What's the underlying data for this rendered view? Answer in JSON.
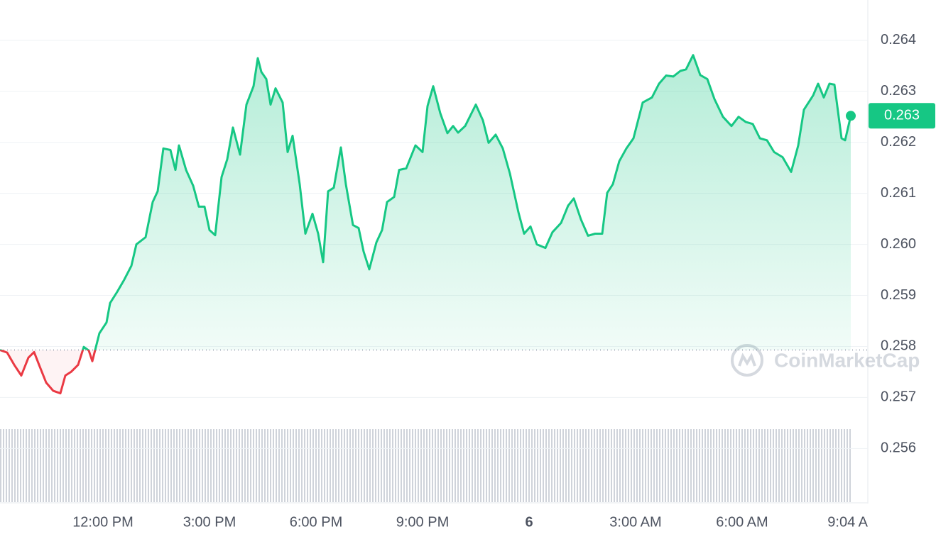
{
  "chart_data": {
    "type": "line",
    "x": [
      9.1,
      9.3,
      9.5,
      9.7,
      9.9,
      10.06,
      10.2,
      10.4,
      10.6,
      10.8,
      10.94,
      11.1,
      11.3,
      11.46,
      11.6,
      11.7,
      11.9,
      12.1,
      12.2,
      12.4,
      12.6,
      12.8,
      12.94,
      13.2,
      13.4,
      13.54,
      13.7,
      13.9,
      14.04,
      14.14,
      14.34,
      14.54,
      14.7,
      14.86,
      15,
      15.16,
      15.34,
      15.5,
      15.66,
      15.86,
      16.04,
      16.24,
      16.36,
      16.46,
      16.6,
      16.72,
      16.86,
      17.06,
      17.2,
      17.34,
      17.54,
      17.7,
      17.9,
      18.06,
      18.2,
      18.34,
      18.5,
      18.7,
      18.84,
      19.04,
      19.2,
      19.34,
      19.5,
      19.7,
      19.86,
      20,
      20.2,
      20.34,
      20.54,
      20.8,
      21,
      21.14,
      21.3,
      21.5,
      21.7,
      21.86,
      22,
      22.2,
      22.5,
      22.7,
      22.86,
      23.06,
      23.26,
      23.46,
      23.7,
      23.86,
      24.04,
      24.22,
      24.46,
      24.66,
      24.9,
      25.1,
      25.26,
      25.46,
      25.66,
      25.86,
      26.06,
      26.2,
      26.36,
      26.54,
      26.74,
      26.94,
      27.2,
      27.46,
      27.66,
      27.86,
      28.06,
      28.26,
      28.42,
      28.62,
      28.82,
      29.02,
      29.22,
      29.46,
      29.7,
      29.9,
      30.1,
      30.3,
      30.5,
      30.7,
      30.9,
      31.14,
      31.38,
      31.58,
      31.74,
      32,
      32.14,
      32.3,
      32.46,
      32.6,
      32.8,
      32.9,
      33.06
    ],
    "values": [
      0.25793,
      0.25788,
      0.25764,
      0.25743,
      0.25778,
      0.25789,
      0.25764,
      0.25729,
      0.25713,
      0.25708,
      0.25743,
      0.2575,
      0.25764,
      0.25799,
      0.25792,
      0.25771,
      0.25826,
      0.25847,
      0.25885,
      0.25907,
      0.25931,
      0.25958,
      0.26,
      0.26014,
      0.26083,
      0.26104,
      0.26188,
      0.26185,
      0.26146,
      0.26194,
      0.26146,
      0.26115,
      0.26074,
      0.26074,
      0.26028,
      0.26018,
      0.26132,
      0.26167,
      0.26229,
      0.26176,
      0.26274,
      0.2631,
      0.26365,
      0.26338,
      0.26324,
      0.26274,
      0.26306,
      0.26278,
      0.26181,
      0.26213,
      0.26118,
      0.26021,
      0.2606,
      0.26021,
      0.25965,
      0.26104,
      0.26111,
      0.2619,
      0.26118,
      0.26038,
      0.26032,
      0.25986,
      0.25951,
      0.26004,
      0.26028,
      0.26083,
      0.26093,
      0.26146,
      0.26149,
      0.26194,
      0.26181,
      0.26271,
      0.2631,
      0.26257,
      0.26218,
      0.26232,
      0.26219,
      0.26232,
      0.26274,
      0.26243,
      0.26199,
      0.26215,
      0.26188,
      0.26139,
      0.26063,
      0.26021,
      0.26035,
      0.26,
      0.25993,
      0.26024,
      0.26042,
      0.26076,
      0.2609,
      0.26049,
      0.26017,
      0.26021,
      0.26021,
      0.26101,
      0.26118,
      0.26163,
      0.26188,
      0.26208,
      0.26278,
      0.26288,
      0.26315,
      0.26331,
      0.26329,
      0.2634,
      0.26343,
      0.26371,
      0.26332,
      0.26324,
      0.26285,
      0.2625,
      0.26232,
      0.2625,
      0.2624,
      0.26236,
      0.26208,
      0.26204,
      0.26181,
      0.26171,
      0.26142,
      0.26194,
      0.26264,
      0.26292,
      0.26315,
      0.26288,
      0.26315,
      0.26313,
      0.26208,
      0.26204,
      0.26252
    ],
    "last_value_label": "0.263",
    "baseline": 0.25793,
    "up_color": "#16c784",
    "down_color": "#ea3943",
    "xlim": [
      9.1,
      33.08
    ],
    "xticks": [
      {
        "value": 12,
        "label": "12:00 PM"
      },
      {
        "value": 15,
        "label": "3:00 PM"
      },
      {
        "value": 18,
        "label": "6:00 PM"
      },
      {
        "value": 21,
        "label": "9:00 PM"
      },
      {
        "value": 24,
        "label": "6"
      },
      {
        "value": 27,
        "label": "3:00 AM"
      },
      {
        "value": 30,
        "label": "6:00 AM"
      },
      {
        "value": 33.07,
        "label": "9:04 A"
      }
    ],
    "ylim": [
      0.25499,
      0.26479
    ],
    "yticks": [
      0.256,
      0.257,
      0.258,
      0.259,
      {
        "value": 0.26,
        "label": "0.260"
      },
      0.261,
      0.262,
      0.263,
      0.264
    ],
    "grid": true,
    "watermark": "CoinMarketCap"
  }
}
